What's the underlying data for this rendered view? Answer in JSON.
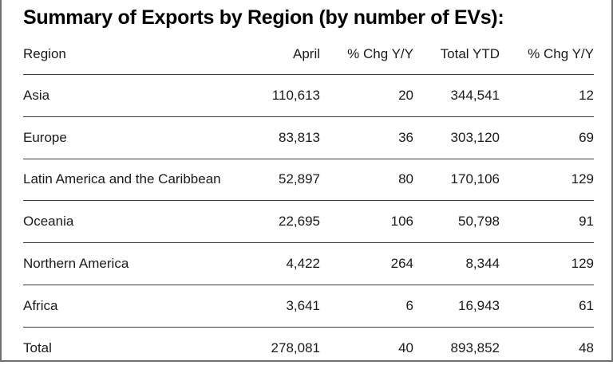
{
  "chart_data": {
    "type": "table",
    "title": "Summary of Exports by Region (by number of EVs):",
    "columns": [
      "Region",
      "April",
      "% Chg Y/Y",
      "Total YTD",
      "% Chg Y/Y"
    ],
    "rows": [
      [
        "Asia",
        "110,613",
        "20",
        "344,541",
        "12"
      ],
      [
        "Europe",
        "83,813",
        "36",
        "303,120",
        "69"
      ],
      [
        "Latin America and the Caribbean",
        "52,897",
        "80",
        "170,106",
        "129"
      ],
      [
        "Oceania",
        "22,695",
        "106",
        "50,798",
        "91"
      ],
      [
        "Northern America",
        "4,422",
        "264",
        "8,344",
        "129"
      ],
      [
        "Africa",
        "3,641",
        "6",
        "16,943",
        "61"
      ],
      [
        "Total",
        "278,081",
        "40",
        "893,852",
        "48"
      ]
    ]
  }
}
